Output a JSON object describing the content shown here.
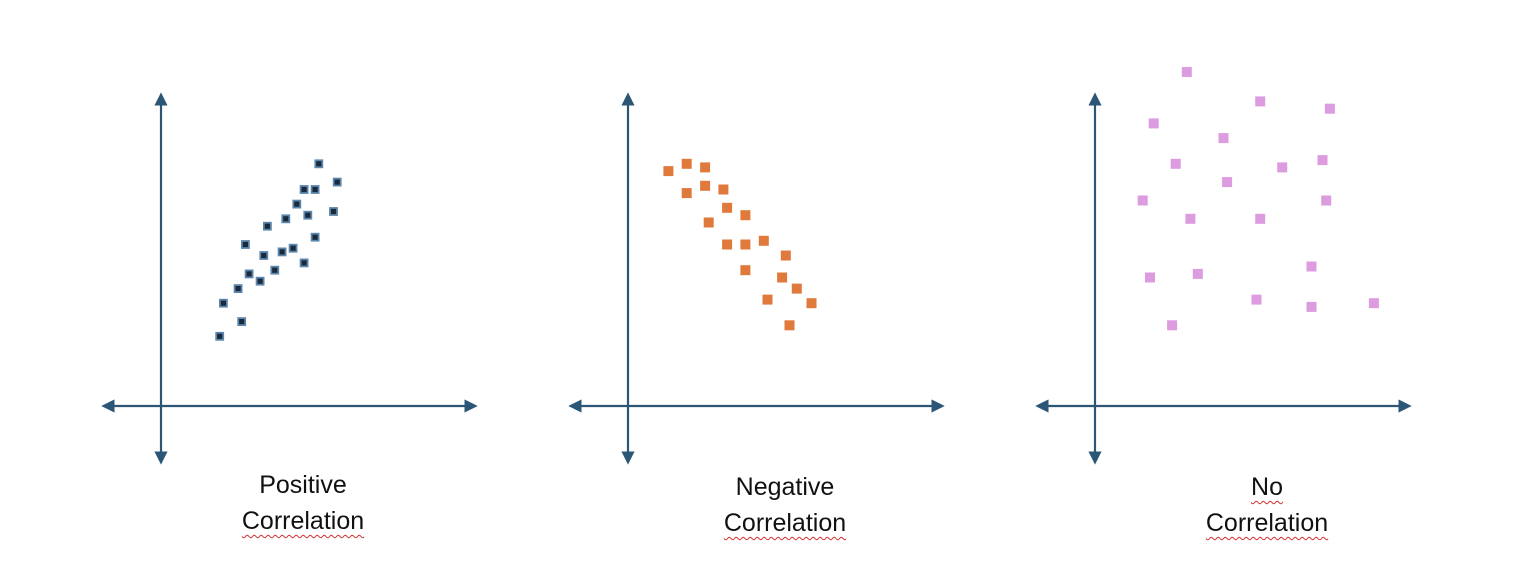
{
  "colors": {
    "axis": "#2b5676",
    "positive_marker_fill": "#1a2a3a",
    "positive_marker_stroke": "#5b86ad",
    "negative_marker": "#e07a3c",
    "none_marker": "#dd9be0",
    "spellcheck_underline": "#d32f2f"
  },
  "chart_data": [
    {
      "type": "scatter",
      "title": "Positive Correlation",
      "caption_lines": [
        "Positive",
        "Correlation"
      ],
      "xlabel": "",
      "ylabel": "",
      "xlim": [
        0,
        10
      ],
      "ylim": [
        0,
        10
      ],
      "grid": false,
      "axes": "arrows-both-ends",
      "points": [
        [
          1.6,
          1.9
        ],
        [
          1.7,
          2.8
        ],
        [
          2.2,
          2.3
        ],
        [
          2.1,
          3.2
        ],
        [
          2.4,
          3.6
        ],
        [
          2.3,
          4.4
        ],
        [
          2.7,
          3.4
        ],
        [
          2.8,
          4.1
        ],
        [
          2.9,
          4.9
        ],
        [
          3.1,
          3.7
        ],
        [
          3.3,
          4.2
        ],
        [
          3.4,
          5.1
        ],
        [
          3.6,
          4.3
        ],
        [
          3.7,
          5.5
        ],
        [
          3.9,
          3.9
        ],
        [
          3.9,
          5.9
        ],
        [
          4.0,
          5.2
        ],
        [
          4.2,
          4.6
        ],
        [
          4.2,
          5.9
        ],
        [
          4.3,
          6.6
        ],
        [
          4.7,
          5.3
        ],
        [
          4.8,
          6.1
        ]
      ]
    },
    {
      "type": "scatter",
      "title": "Negative Correlation",
      "caption_lines": [
        "Negative",
        "Correlation"
      ],
      "xlabel": "",
      "ylabel": "",
      "xlim": [
        0,
        10
      ],
      "ylim": [
        0,
        10
      ],
      "grid": false,
      "axes": "arrows-both-ends",
      "points": [
        [
          1.1,
          6.4
        ],
        [
          1.6,
          6.6
        ],
        [
          2.1,
          6.5
        ],
        [
          1.6,
          5.8
        ],
        [
          2.1,
          6.0
        ],
        [
          2.6,
          5.9
        ],
        [
          2.2,
          5.0
        ],
        [
          2.7,
          5.4
        ],
        [
          3.2,
          5.2
        ],
        [
          2.7,
          4.4
        ],
        [
          3.2,
          4.4
        ],
        [
          3.7,
          4.5
        ],
        [
          3.2,
          3.7
        ],
        [
          4.3,
          4.1
        ],
        [
          3.8,
          2.9
        ],
        [
          4.2,
          3.5
        ],
        [
          4.6,
          3.2
        ],
        [
          5.0,
          2.8
        ],
        [
          4.4,
          2.2
        ]
      ]
    },
    {
      "type": "scatter",
      "title": "No Correlation",
      "caption_lines": [
        "No",
        "Correlation"
      ],
      "xlabel": "",
      "ylabel": "",
      "xlim": [
        0,
        10
      ],
      "ylim": [
        0,
        10
      ],
      "grid": false,
      "axes": "arrows-both-ends",
      "points": [
        [
          2.5,
          9.1
        ],
        [
          4.5,
          8.3
        ],
        [
          6.4,
          8.1
        ],
        [
          1.6,
          7.7
        ],
        [
          3.5,
          7.3
        ],
        [
          2.2,
          6.6
        ],
        [
          6.2,
          6.7
        ],
        [
          5.1,
          6.5
        ],
        [
          3.6,
          6.1
        ],
        [
          1.3,
          5.6
        ],
        [
          6.3,
          5.6
        ],
        [
          2.6,
          5.1
        ],
        [
          4.5,
          5.1
        ],
        [
          5.9,
          3.8
        ],
        [
          1.5,
          3.5
        ],
        [
          2.8,
          3.6
        ],
        [
          4.4,
          2.9
        ],
        [
          5.9,
          2.7
        ],
        [
          7.6,
          2.8
        ],
        [
          2.1,
          2.2
        ]
      ]
    }
  ]
}
